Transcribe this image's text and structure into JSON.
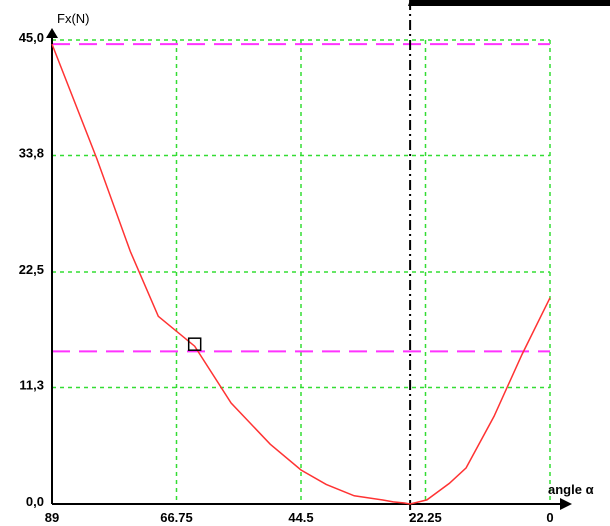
{
  "chart_data": {
    "type": "line",
    "ylabel": "Fx(N)",
    "xlabel": "angle α",
    "x_reversed": true,
    "xlim": [
      89,
      0
    ],
    "ylim": [
      0,
      45.0
    ],
    "x_ticks": [
      "89",
      "66.75",
      "44.5",
      "22.25",
      "0"
    ],
    "x_tick_values": [
      89,
      66.75,
      44.5,
      22.25,
      0
    ],
    "y_ticks": [
      "0,0",
      "11,3",
      "22,5",
      "33,8",
      "45,0"
    ],
    "y_tick_values": [
      0,
      11.3,
      22.5,
      33.8,
      45.0
    ],
    "grid": true,
    "colors": {
      "curve": "#ff3333",
      "grid": "#33dd33",
      "reference_lines": "#ff33ff",
      "axes": "#000000"
    },
    "series": [
      {
        "x": [
          89,
          81,
          75,
          70,
          63.5,
          57,
          50,
          44.5,
          40,
          35,
          30,
          28,
          26,
          25,
          22,
          18,
          15,
          10,
          5,
          0
        ],
        "values": [
          44.6,
          33.5,
          24.5,
          18.2,
          15.3,
          9.8,
          5.8,
          3.3,
          1.9,
          0.8,
          0.4,
          0.2,
          0.1,
          0.0,
          0.4,
          2.0,
          3.5,
          8.5,
          14.5,
          20.0
        ]
      }
    ],
    "reference_lines": [
      {
        "orientation": "horizontal",
        "y": 44.6,
        "style": "dashed"
      },
      {
        "orientation": "horizontal",
        "y": 14.8,
        "style": "dashed"
      },
      {
        "orientation": "vertical",
        "x": 25,
        "style": "dash-dot"
      }
    ],
    "marker": {
      "shape": "square",
      "x": 63.5,
      "y": 15.5
    }
  }
}
